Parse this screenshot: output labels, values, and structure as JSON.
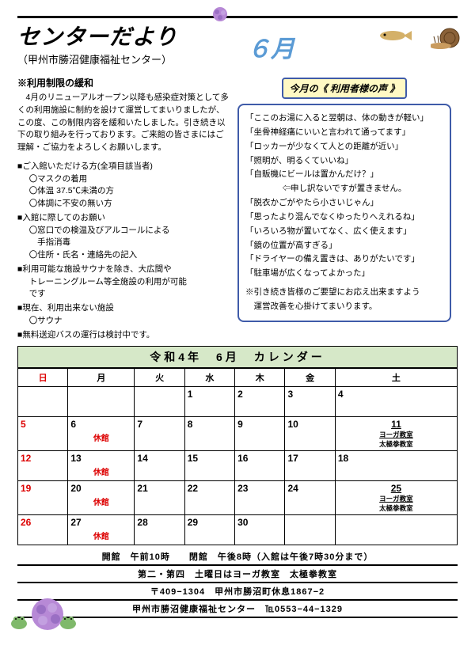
{
  "header": {
    "title": "センターだより",
    "subtitle": "（甲州市勝沼健康福祉センター）",
    "month": "６月"
  },
  "left": {
    "sec1_title": "※利用制限の緩和",
    "sec1_body": "　4月のリニューアルオープン以降も感染症対策として多くの利用施設に制約を設けて運営してまいりましたが、この度、この制限内容を緩和いたしました。引き続き以下の取り組みを行っております。ご来館の皆さまにはご理解・ご協力をよろしくお願いします。",
    "b1": "■ご入館いただける方(全項目該当者)",
    "b1a": "〇マスクの着用",
    "b1b": "〇体温 37.5℃未満の方",
    "b1c": "〇体調に不安の無い方",
    "b2": "■入館に際してのお願い",
    "b2a": "〇窓口での検温及びアルコールによる",
    "b2a2": "　手指消毒",
    "b2b": "〇住所・氏名・連絡先の記入",
    "b3": "■利用可能な施設サウナを除き、大広間や",
    "b3a": "トレーニングルーム等全施設の利用が可能",
    "b3b": "です",
    "b4": "■現在、利用出来ない施設",
    "b4a": "〇サウナ",
    "b5": "■無料送迎バスの運行は検討中です。"
  },
  "voice": {
    "title": "今月の《 利用者様の声 》",
    "l1": "「ここのお湯に入ると翌朝は、体の動きが軽い」",
    "l2": "「坐骨神経痛にいいと言われて通ってます」",
    "l3": "「ロッカーが少なくて人との距離が近い」",
    "l4": "「照明が、明るくていいね」",
    "l5": "「自販機にビールは置かんだけ？」",
    "l5b": "⇦申し訳ないですが置きません。",
    "l6": "「脱衣かごがやたら小さいじゃん」",
    "l7": "「思ったより混んでなくゆったりへえれるね」",
    "l8": "「いろいろ物が置いてなく、広く使えます」",
    "l9": "「鏡の位置が高すぎる」",
    "l10": "「ドライヤーの備え置きは、ありがたいです」",
    "l11": "「駐車場が広くなってよかった」",
    "ftr1": "※引き続き皆様のご要望にお応え出来ますよう",
    "ftr2": "　運営改善を心掛けてまいります。"
  },
  "calendar": {
    "title": "令和4年　6月　カレンダー",
    "days": [
      "日",
      "月",
      "火",
      "水",
      "木",
      "金",
      "土"
    ],
    "closed": "休館",
    "ev1": "ヨーガ教室",
    "ev2": "太極拳教室",
    "weeks": [
      [
        {
          "d": ""
        },
        {
          "d": ""
        },
        {
          "d": ""
        },
        {
          "d": "1"
        },
        {
          "d": "2"
        },
        {
          "d": "3"
        },
        {
          "d": "4"
        }
      ],
      [
        {
          "d": "5"
        },
        {
          "d": "6",
          "closed": true
        },
        {
          "d": "7"
        },
        {
          "d": "8"
        },
        {
          "d": "9"
        },
        {
          "d": "10"
        },
        {
          "d": "11",
          "ev": true
        }
      ],
      [
        {
          "d": "12"
        },
        {
          "d": "13",
          "closed": true
        },
        {
          "d": "14"
        },
        {
          "d": "15"
        },
        {
          "d": "16"
        },
        {
          "d": "17"
        },
        {
          "d": "18"
        }
      ],
      [
        {
          "d": "19"
        },
        {
          "d": "20",
          "closed": true
        },
        {
          "d": "21"
        },
        {
          "d": "22"
        },
        {
          "d": "23"
        },
        {
          "d": "24"
        },
        {
          "d": "25",
          "ev": true
        }
      ],
      [
        {
          "d": "26"
        },
        {
          "d": "27",
          "closed": true
        },
        {
          "d": "28"
        },
        {
          "d": "29"
        },
        {
          "d": "30"
        },
        {
          "d": ""
        },
        {
          "d": ""
        }
      ]
    ]
  },
  "bottom": {
    "r1a": "開館　午前10時",
    "r1b": "閉館　午後8時（入館は午後7時30分まで）",
    "r2": "第二・第四　土曜日はヨーガ教室　太極拳教室",
    "r3a": "〒409−1304　甲州市勝沼町休息1867−2",
    "r4a": "甲州市勝沼健康福祉センター",
    "r4b": "℡0553−44−1329"
  },
  "colors": {
    "accent_blue": "#3f5ba9",
    "month_blue": "#5b9bd5",
    "cal_green": "#d6e8c8",
    "yellow": "#fff9c4",
    "red": "#d00"
  }
}
